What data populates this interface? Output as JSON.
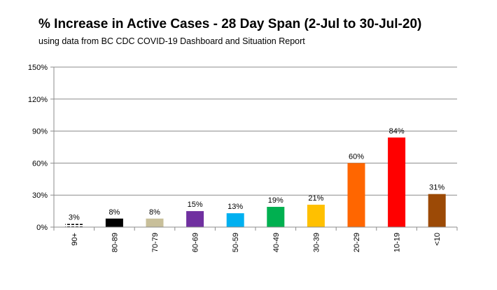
{
  "chart_data": {
    "type": "bar",
    "title": "% Increase in Active Cases  - 28 Day Span (2-Jul to 30-Jul-20)",
    "subtitle": "using data from BC CDC COVID-19 Dashboard and Situation Report",
    "xlabel": "",
    "ylabel": "",
    "categories": [
      "90+",
      "80-89",
      "70-79",
      "60-69",
      "50-59",
      "40-49",
      "30-39",
      "20-29",
      "10-19",
      "<10"
    ],
    "values": [
      3,
      8,
      8,
      15,
      13,
      19,
      21,
      60,
      84,
      31
    ],
    "data_labels": [
      "3%",
      "8%",
      "8%",
      "15%",
      "13%",
      "19%",
      "21%",
      "60%",
      "84%",
      "31%"
    ],
    "colors": [
      "#000000",
      "#000000",
      "#c8bf9a",
      "#7030a0",
      "#00b0f0",
      "#00b050",
      "#ffc000",
      "#ff6600",
      "#ff0000",
      "#9c4a06"
    ],
    "patterned_bars": [
      "90+"
    ],
    "ylim": [
      0,
      150
    ],
    "yticks": [
      0,
      30,
      60,
      90,
      120,
      150
    ],
    "ytick_labels": [
      "0%",
      "30%",
      "60%",
      "90%",
      "120%",
      "150%"
    ],
    "grid": true,
    "legend": "none"
  }
}
